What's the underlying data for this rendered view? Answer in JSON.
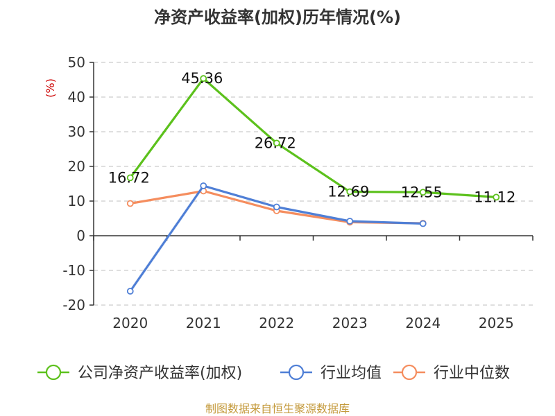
{
  "chart_data": {
    "type": "line",
    "title": "净资产收益率(加权)历年情况(%)",
    "ylabel": "(%)",
    "xlabel": "",
    "categories": [
      "2020",
      "2021",
      "2022",
      "2023",
      "2024",
      "2025"
    ],
    "ylim": [
      -20,
      50
    ],
    "yticks": [
      -20,
      -10,
      0,
      10,
      20,
      30,
      40,
      50
    ],
    "grid": true,
    "legend_position": "bottom",
    "series": [
      {
        "name": "公司净资产收益率(加权)",
        "color": "#5cc11c",
        "values": [
          16.72,
          45.36,
          26.72,
          12.69,
          12.55,
          11.12
        ],
        "labels": [
          "16.72",
          "45.36",
          "26.72",
          "12.69",
          "12.55",
          "11.12"
        ]
      },
      {
        "name": "行业均值",
        "color": "#4f7fd6",
        "values": [
          -16.0,
          14.4,
          8.3,
          4.2,
          3.5,
          null
        ]
      },
      {
        "name": "行业中位数",
        "color": "#f58d5e",
        "values": [
          9.3,
          12.9,
          7.2,
          3.9,
          3.6,
          null
        ]
      }
    ],
    "source": "制图数据来自恒生聚源数据库"
  }
}
